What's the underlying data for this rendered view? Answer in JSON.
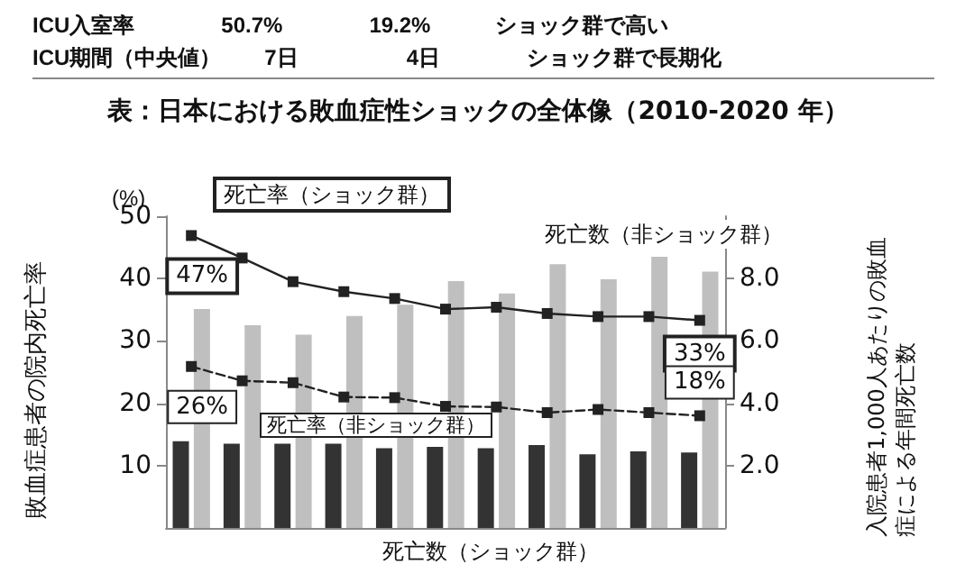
{
  "chart_data": {
    "type": "bar",
    "title": "表：日本における敗血症性ショックの全体像（2010-2020 年）",
    "ylabel": "敗血症患者の院内死亡率",
    "y2label": "入院患者1,000人あたりの敗血症による年間死亡数",
    "annotations": [
      "ICU入室率　　　　50.7%　　　　19.2%　　　ショック群で高い",
      "ICU期間（中央値）　　7日　　　　　4日　　　　ショック群で長期化",
      "(%)"
    ],
    "categories": [
      null,
      null,
      null,
      null,
      null,
      null,
      null,
      null,
      null,
      null,
      null
    ],
    "series": [
      {
        "name": "死亡数（ショック群）",
        "axis": "y2",
        "color": "#333333",
        "values": [
          2.78,
          2.7,
          2.7,
          2.7,
          2.56,
          2.6,
          2.56,
          2.66,
          2.36,
          2.46,
          2.42
        ]
      },
      {
        "name": "死亡数（非ショック群）",
        "axis": "y2",
        "color": "#bfbfbf",
        "values": [
          7.02,
          6.5,
          6.2,
          6.8,
          7.16,
          7.92,
          7.52,
          8.46,
          7.98,
          8.7,
          8.22
        ]
      },
      {
        "name": "死亡率（ショック群）",
        "type": "line",
        "color": "#222222",
        "line_style": "solid",
        "values": [
          46.9,
          43.3,
          39.5,
          37.9,
          36.8,
          35.1,
          35.4,
          34.4,
          33.9,
          33.9,
          33.3
        ],
        "value_labels": [
          "47%",
          null,
          null,
          null,
          null,
          null,
          null,
          null,
          null,
          null,
          "33%"
        ]
      },
      {
        "name": "死亡率（非ショック群）",
        "type": "line",
        "color": "#222222",
        "line_style": "dashed",
        "values": [
          25.9,
          23.6,
          23.3,
          21.0,
          20.9,
          19.5,
          19.4,
          18.5,
          19.0,
          18.5,
          18.0
        ],
        "value_labels": [
          "26%",
          null,
          null,
          null,
          null,
          null,
          null,
          null,
          null,
          null,
          "18%"
        ]
      }
    ],
    "ylim": [
      0,
      50
    ],
    "yticks": [
      10,
      20,
      30,
      40,
      50
    ],
    "y2lim": [
      0,
      10
    ],
    "y2ticks": [
      {
        "value": 2,
        "label": "2.0"
      },
      {
        "value": 4,
        "label": "4.0"
      },
      {
        "value": 6,
        "label": "6.0"
      },
      {
        "value": 8,
        "label": "8.0"
      }
    ],
    "marker": "square",
    "grid": false,
    "legend": false
  }
}
